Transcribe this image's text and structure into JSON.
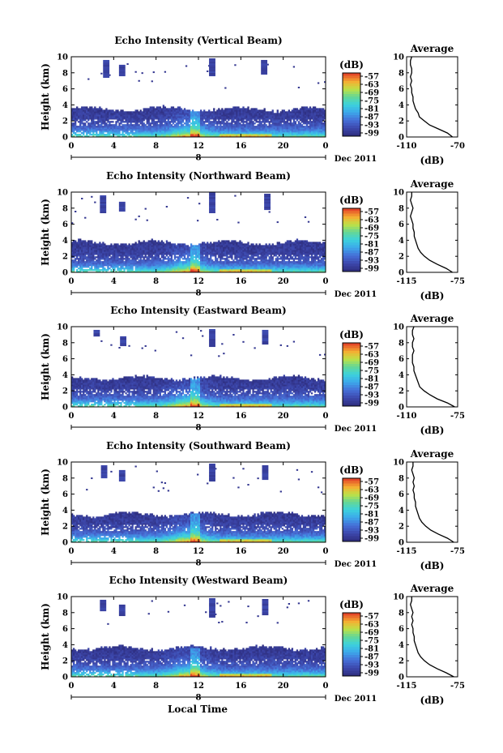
{
  "figure": {
    "xlabel": "Local Time",
    "date_label": "Dec 2011",
    "day_label": "8",
    "colorbar_unit": "(dB)",
    "colorbar_ticks": [
      "-57",
      "-63",
      "-69",
      "-75",
      "-81",
      "-87",
      "-93",
      "-99"
    ],
    "avg_title": "Average",
    "avg_xlabel": "(dB)"
  },
  "chart_data": [
    {
      "type": "heatmap",
      "title": "Echo Intensity (Vertical Beam)",
      "ylabel": "Height (km)",
      "x_ticks": [
        "0",
        "4",
        "8",
        "12",
        "16",
        "20",
        "0"
      ],
      "xlim": [
        0,
        24
      ],
      "ylim": [
        0,
        10
      ],
      "y_ticks": [
        "0",
        "2",
        "4",
        "6",
        "8",
        "10"
      ],
      "clim": [
        -99,
        -57
      ],
      "cloud_top_km": 3.4,
      "upper_clouds": [
        {
          "t": 3.3,
          "bottom": 7.4,
          "top": 9.5
        },
        {
          "t": 4.8,
          "bottom": 7.6,
          "top": 8.8
        },
        {
          "t": 13.3,
          "bottom": 7.6,
          "top": 9.6
        },
        {
          "t": 18.2,
          "bottom": 7.8,
          "top": 9.4
        }
      ],
      "average_profile": {
        "xlim": [
          -110,
          -70
        ],
        "x_ticks": [
          "-110",
          "-70"
        ],
        "height_km": [
          0,
          0.5,
          1,
          1.5,
          2,
          2.5,
          3,
          3.5,
          4,
          4.5,
          5,
          5.5,
          6,
          6.5,
          7,
          7.5,
          8,
          8.5,
          9,
          9.5,
          10
        ],
        "db": [
          -74,
          -78,
          -85,
          -92,
          -96,
          -100,
          -101,
          -103,
          -104,
          -105,
          -105,
          -106,
          -106,
          -107,
          -106,
          -107,
          -106,
          -106,
          -107,
          -107,
          -106
        ]
      }
    },
    {
      "type": "heatmap",
      "title": "Echo Intensity (Northward Beam)",
      "ylabel": "Height (km)",
      "x_ticks": [
        "0",
        "4",
        "8",
        "12",
        "16",
        "20",
        "0"
      ],
      "xlim": [
        0,
        24
      ],
      "ylim": [
        0,
        10
      ],
      "y_ticks": [
        "0",
        "2",
        "4",
        "6",
        "8",
        "10"
      ],
      "clim": [
        -99,
        -57
      ],
      "cloud_top_km": 3.6,
      "upper_clouds": [
        {
          "t": 3.0,
          "bottom": 7.4,
          "top": 9.4
        },
        {
          "t": 4.8,
          "bottom": 7.6,
          "top": 8.6
        },
        {
          "t": 13.3,
          "bottom": 7.4,
          "top": 9.8
        },
        {
          "t": 18.5,
          "bottom": 7.8,
          "top": 9.6
        }
      ],
      "average_profile": {
        "xlim": [
          -115,
          -75
        ],
        "x_ticks": [
          "-115",
          "-75"
        ],
        "height_km": [
          0,
          0.5,
          1,
          1.5,
          2,
          2.5,
          3,
          3.5,
          4,
          4.5,
          5,
          5.5,
          6,
          6.5,
          7,
          7.5,
          8,
          8.5,
          9,
          9.5,
          10
        ],
        "db": [
          -79,
          -84,
          -91,
          -97,
          -101,
          -104,
          -106,
          -107,
          -108,
          -109,
          -109,
          -110,
          -110,
          -111,
          -112,
          -111,
          -110,
          -111,
          -112,
          -111,
          -111
        ]
      }
    },
    {
      "type": "heatmap",
      "title": "Echo Intensity (Eastward Beam)",
      "ylabel": "Height (km)",
      "x_ticks": [
        "0",
        "4",
        "8",
        "12",
        "16",
        "20",
        "0"
      ],
      "xlim": [
        0,
        24
      ],
      "ylim": [
        0,
        10
      ],
      "y_ticks": [
        "0",
        "2",
        "4",
        "6",
        "8",
        "10"
      ],
      "clim": [
        -99,
        -57
      ],
      "cloud_top_km": 3.5,
      "upper_clouds": [
        {
          "t": 2.4,
          "bottom": 8.8,
          "top": 9.5
        },
        {
          "t": 4.9,
          "bottom": 7.6,
          "top": 8.7
        },
        {
          "t": 13.3,
          "bottom": 7.5,
          "top": 9.6
        },
        {
          "t": 18.3,
          "bottom": 7.8,
          "top": 9.5
        }
      ],
      "average_profile": {
        "xlim": [
          -110,
          -75
        ],
        "x_ticks": [
          "-110",
          "-75"
        ],
        "height_km": [
          0,
          0.5,
          1,
          1.5,
          2,
          2.5,
          3,
          3.5,
          4,
          4.5,
          5,
          5.5,
          6,
          6.5,
          7,
          7.5,
          8,
          8.5,
          9,
          9.5,
          10
        ],
        "db": [
          -77,
          -82,
          -89,
          -94,
          -98,
          -101,
          -102,
          -103,
          -104,
          -105,
          -105,
          -106,
          -106,
          -106,
          -105,
          -106,
          -106,
          -105,
          -106,
          -106,
          -105
        ]
      }
    },
    {
      "type": "heatmap",
      "title": "Echo Intensity (Southward Beam)",
      "ylabel": "Height (km)",
      "x_ticks": [
        "0",
        "4",
        "8",
        "12",
        "16",
        "20",
        "0"
      ],
      "xlim": [
        0,
        24
      ],
      "ylim": [
        0,
        10
      ],
      "y_ticks": [
        "0",
        "2",
        "4",
        "6",
        "8",
        "10"
      ],
      "clim": [
        -99,
        -57
      ],
      "cloud_top_km": 3.4,
      "upper_clouds": [
        {
          "t": 3.1,
          "bottom": 8.0,
          "top": 9.4
        },
        {
          "t": 4.8,
          "bottom": 7.6,
          "top": 8.8
        },
        {
          "t": 13.3,
          "bottom": 7.6,
          "top": 9.6
        },
        {
          "t": 18.3,
          "bottom": 7.8,
          "top": 9.5
        }
      ],
      "average_profile": {
        "xlim": [
          -115,
          -75
        ],
        "x_ticks": [
          "-115",
          "-75"
        ],
        "height_km": [
          0,
          0.5,
          1,
          1.5,
          2,
          2.5,
          3,
          3.5,
          4,
          4.5,
          5,
          5.5,
          6,
          6.5,
          7,
          7.5,
          8,
          8.5,
          9,
          9.5,
          10
        ],
        "db": [
          -78,
          -83,
          -90,
          -96,
          -100,
          -103,
          -105,
          -106,
          -107,
          -108,
          -108,
          -109,
          -109,
          -110,
          -109,
          -110,
          -109,
          -110,
          -111,
          -110,
          -110
        ]
      }
    },
    {
      "type": "heatmap",
      "title": "Echo Intensity (Westward Beam)",
      "ylabel": "Height (km)",
      "x_ticks": [
        "0",
        "4",
        "8",
        "12",
        "16",
        "20",
        "0"
      ],
      "xlim": [
        0,
        24
      ],
      "ylim": [
        0,
        10
      ],
      "y_ticks": [
        "0",
        "2",
        "4",
        "6",
        "8",
        "10"
      ],
      "clim": [
        -99,
        -57
      ],
      "cloud_top_km": 3.5,
      "upper_clouds": [
        {
          "t": 3.0,
          "bottom": 8.2,
          "top": 9.5
        },
        {
          "t": 4.8,
          "bottom": 7.6,
          "top": 8.8
        },
        {
          "t": 13.3,
          "bottom": 7.4,
          "top": 9.7
        },
        {
          "t": 18.3,
          "bottom": 7.7,
          "top": 9.6
        }
      ],
      "average_profile": {
        "xlim": [
          -115,
          -75
        ],
        "x_ticks": [
          "-115",
          "-75"
        ],
        "height_km": [
          0,
          0.5,
          1,
          1.5,
          2,
          2.5,
          3,
          3.5,
          4,
          4.5,
          5,
          5.5,
          6,
          6.5,
          7,
          7.5,
          8,
          8.5,
          9,
          9.5,
          10
        ],
        "db": [
          -78,
          -84,
          -91,
          -97,
          -101,
          -104,
          -106,
          -107,
          -108,
          -109,
          -109,
          -110,
          -110,
          -111,
          -110,
          -111,
          -110,
          -111,
          -112,
          -111,
          -111
        ]
      }
    }
  ]
}
